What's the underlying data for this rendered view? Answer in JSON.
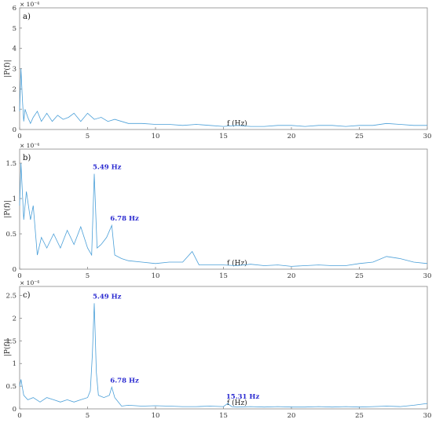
{
  "colors": {
    "line": "#4a9fd8",
    "annotation": "#2a2ad0",
    "axis": "#888888"
  },
  "chart_data": [
    {
      "type": "line",
      "panel_label": "a)",
      "xlabel": "f (Hz)",
      "ylabel": "|P(f)|",
      "exponent_label": "× 10⁻⁴",
      "xlim": [
        0,
        30
      ],
      "ylim": [
        0,
        6
      ],
      "xticks": [
        "0",
        "5",
        "10",
        "15",
        "20",
        "25",
        "30"
      ],
      "yticks": [
        "0",
        "1",
        "2",
        "3",
        "4",
        "5",
        "6"
      ],
      "grid": false,
      "series": [
        {
          "x": [
            0,
            0.1,
            0.2,
            0.3,
            0.4,
            0.6,
            0.8,
            1.0,
            1.3,
            1.6,
            2.0,
            2.4,
            2.8,
            3.2,
            3.6,
            4.0,
            4.5,
            5.0,
            5.5,
            6.0,
            6.5,
            7.0,
            8.0,
            9.0,
            10.0,
            11.0,
            12.0,
            13.0,
            14.0,
            15.0,
            16.0,
            17.0,
            18.0,
            19.0,
            20.0,
            21.0,
            22.0,
            23.0,
            24.0,
            25.0,
            26.0,
            27.0,
            28.0,
            29.0,
            30.0
          ],
          "y": [
            0.9,
            3.0,
            1.5,
            0.4,
            1.0,
            0.6,
            0.3,
            0.6,
            0.9,
            0.4,
            0.8,
            0.4,
            0.7,
            0.5,
            0.6,
            0.8,
            0.4,
            0.8,
            0.5,
            0.6,
            0.4,
            0.5,
            0.3,
            0.3,
            0.25,
            0.25,
            0.2,
            0.25,
            0.2,
            0.15,
            0.2,
            0.15,
            0.15,
            0.2,
            0.2,
            0.15,
            0.2,
            0.2,
            0.15,
            0.2,
            0.2,
            0.3,
            0.25,
            0.2,
            0.2
          ]
        }
      ],
      "annotations": []
    },
    {
      "type": "line",
      "panel_label": "b)",
      "xlabel": "f (Hz)",
      "ylabel": "|P(f)|",
      "exponent_label": "× 10⁻⁴",
      "xlim": [
        0,
        30
      ],
      "ylim": [
        0,
        1.7
      ],
      "xticks": [
        "0",
        "5",
        "10",
        "15",
        "20",
        "25",
        "30"
      ],
      "yticks": [
        "0",
        "0.5",
        "1",
        "1.5"
      ],
      "ytick_values": [
        0,
        0.5,
        1,
        1.5
      ],
      "grid": false,
      "series": [
        {
          "x": [
            0,
            0.1,
            0.3,
            0.5,
            0.8,
            1.0,
            1.3,
            1.6,
            2.0,
            2.5,
            3.0,
            3.5,
            4.0,
            4.5,
            5.0,
            5.3,
            5.49,
            5.7,
            6.0,
            6.4,
            6.78,
            7.0,
            7.5,
            8.0,
            9.0,
            10.0,
            11.0,
            12.0,
            12.7,
            13.2,
            14.0,
            15.0,
            16.0,
            17.0,
            18.0,
            19.0,
            20.0,
            21.0,
            22.0,
            23.0,
            24.0,
            25.0,
            26.0,
            27.0,
            28.0,
            29.0,
            30.0
          ],
          "y": [
            0.9,
            1.5,
            0.7,
            1.1,
            0.7,
            0.9,
            0.2,
            0.45,
            0.3,
            0.5,
            0.3,
            0.55,
            0.35,
            0.6,
            0.3,
            0.2,
            1.35,
            0.3,
            0.35,
            0.45,
            0.62,
            0.2,
            0.15,
            0.12,
            0.1,
            0.08,
            0.1,
            0.1,
            0.25,
            0.06,
            0.06,
            0.06,
            0.05,
            0.07,
            0.05,
            0.06,
            0.04,
            0.05,
            0.06,
            0.05,
            0.05,
            0.08,
            0.1,
            0.18,
            0.15,
            0.1,
            0.08
          ]
        }
      ],
      "annotations": [
        {
          "text": "5.49 Hz",
          "x": 5.49,
          "y": 1.35
        },
        {
          "text": "6.78 Hz",
          "x": 6.78,
          "y": 0.62
        }
      ]
    },
    {
      "type": "line",
      "panel_label": "c)",
      "xlabel": "f (Hz)",
      "ylabel": "|P(f)|",
      "exponent_label": "× 10⁻⁴",
      "xlim": [
        0,
        30
      ],
      "ylim": [
        0,
        2.7
      ],
      "xticks": [
        "0",
        "5",
        "10",
        "15",
        "20",
        "25",
        "30"
      ],
      "yticks": [
        "0",
        "0.5",
        "1",
        "1.5",
        "2",
        "2.5"
      ],
      "ytick_values": [
        0,
        0.5,
        1,
        1.5,
        2,
        2.5
      ],
      "grid": false,
      "series": [
        {
          "x": [
            0,
            0.1,
            0.3,
            0.6,
            1.0,
            1.5,
            2.0,
            2.5,
            3.0,
            3.5,
            4.0,
            4.5,
            5.0,
            5.2,
            5.35,
            5.49,
            5.65,
            5.8,
            6.2,
            6.6,
            6.78,
            7.0,
            7.5,
            8.0,
            9.0,
            10.0,
            11.0,
            12.0,
            13.0,
            14.0,
            15.0,
            15.31,
            15.6,
            16.0,
            17.0,
            18.0,
            19.0,
            20.0,
            21.0,
            22.0,
            23.0,
            24.0,
            25.0,
            26.0,
            27.0,
            28.0,
            29.0,
            30.0
          ],
          "y": [
            0.5,
            0.65,
            0.3,
            0.2,
            0.25,
            0.15,
            0.25,
            0.2,
            0.15,
            0.2,
            0.15,
            0.2,
            0.25,
            0.4,
            1.2,
            2.33,
            0.8,
            0.3,
            0.25,
            0.3,
            0.48,
            0.25,
            0.06,
            0.08,
            0.06,
            0.07,
            0.06,
            0.05,
            0.05,
            0.06,
            0.05,
            0.12,
            0.05,
            0.04,
            0.05,
            0.04,
            0.05,
            0.04,
            0.04,
            0.05,
            0.04,
            0.05,
            0.04,
            0.05,
            0.06,
            0.05,
            0.08,
            0.12
          ]
        }
      ],
      "annotations": [
        {
          "text": "5.49 Hz",
          "x": 5.49,
          "y": 2.33
        },
        {
          "text": "6.78 Hz",
          "x": 6.78,
          "y": 0.48
        },
        {
          "text": "15.31 Hz",
          "x": 15.31,
          "y": 0.12
        }
      ]
    }
  ]
}
